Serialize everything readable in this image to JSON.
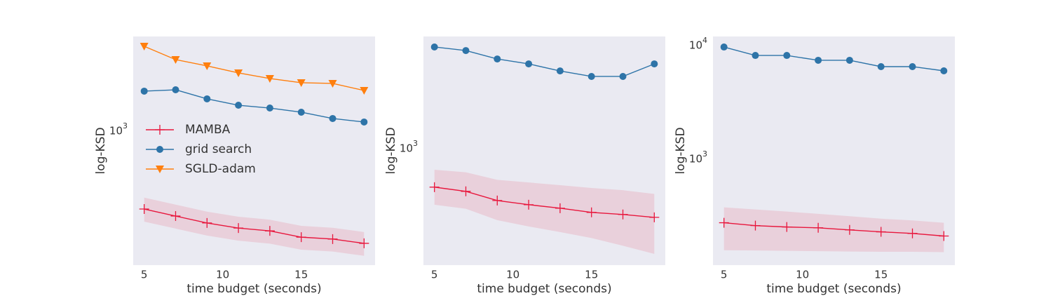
{
  "chart_data": [
    {
      "type": "line",
      "xlabel": "time budget (seconds)",
      "ylabel": "log-KSD",
      "log_y": true,
      "grid": false,
      "legend": "center left",
      "x": [
        5,
        7,
        9,
        11,
        13,
        15,
        17,
        19
      ],
      "xlim": [
        4.3,
        19.7
      ],
      "xticks": [
        5,
        10,
        15
      ],
      "ylim": [
        169,
        3404
      ],
      "yticks": [
        {
          "value": 1000,
          "label": "10^3"
        }
      ],
      "series": [
        {
          "name": "MAMBA",
          "color": "#e8173d",
          "marker": "plus",
          "values": [
            353,
            322,
            294,
            275,
            265,
            244,
            238,
            225
          ],
          "lower": [
            299,
            273,
            249,
            233,
            224,
            207,
            202,
            191
          ],
          "upper": [
            410,
            374,
            341,
            319,
            307,
            283,
            276,
            261
          ]
        },
        {
          "name": "grid search",
          "color": "#2e74a8",
          "marker": "circle",
          "values": [
            1660,
            1690,
            1500,
            1380,
            1330,
            1259,
            1159,
            1107
          ]
        },
        {
          "name": "SGLD-adam",
          "color": "#ff7f0e",
          "marker": "triangle",
          "values": [
            2992,
            2512,
            2312,
            2109,
            1959,
            1854,
            1837,
            1675
          ]
        }
      ]
    },
    {
      "type": "line",
      "xlabel": "time budget (seconds)",
      "ylabel": "log-KSD",
      "log_y": true,
      "grid": false,
      "x": [
        5,
        7,
        9,
        11,
        13,
        15,
        17,
        19
      ],
      "xlim": [
        4.3,
        19.7
      ],
      "xticks": [
        5,
        10,
        15
      ],
      "ylim": [
        275,
        3365
      ],
      "yticks": [
        {
          "value": 1000,
          "label": "10^3"
        }
      ],
      "series": [
        {
          "name": "MAMBA",
          "color": "#e8173d",
          "marker": "plus",
          "values": [
            646,
            617,
            558,
            533,
            513,
            490,
            479,
            464
          ],
          "lower": [
            533,
            510,
            450,
            420,
            395,
            370,
            340,
            311
          ],
          "upper": [
            782,
            760,
            700,
            680,
            660,
            640,
            625,
            600
          ]
        },
        {
          "name": "grid search",
          "color": "#2e74a8",
          "marker": "circle",
          "values": [
            2999,
            2884,
            2630,
            2492,
            2307,
            2172,
            2172,
            2492
          ]
        }
      ]
    },
    {
      "type": "line",
      "xlabel": "time budget (seconds)",
      "ylabel": "log-KSD",
      "log_y": true,
      "grid": false,
      "x": [
        5,
        7,
        9,
        11,
        13,
        15,
        17,
        19
      ],
      "xlim": [
        4.3,
        19.7
      ],
      "xticks": [
        5,
        10,
        15
      ],
      "ylim": [
        113,
        11700
      ],
      "yticks": [
        {
          "value": 1000,
          "label": "10^3"
        },
        {
          "value": 10000,
          "label": "10^4"
        }
      ],
      "series": [
        {
          "name": "MAMBA",
          "color": "#e8173d",
          "marker": "plus",
          "values": [
            267,
            252,
            245,
            241,
            231,
            222,
            215,
            204
          ],
          "lower": [
            153,
            152,
            151,
            150,
            149,
            148,
            148,
            147
          ],
          "upper": [
            365,
            350,
            335,
            320,
            305,
            290,
            280,
            267
          ]
        },
        {
          "name": "grid search",
          "color": "#2e74a8",
          "marker": "circle",
          "values": [
            9447,
            7960,
            7960,
            7215,
            7215,
            6345,
            6345,
            5825
          ]
        }
      ]
    }
  ]
}
